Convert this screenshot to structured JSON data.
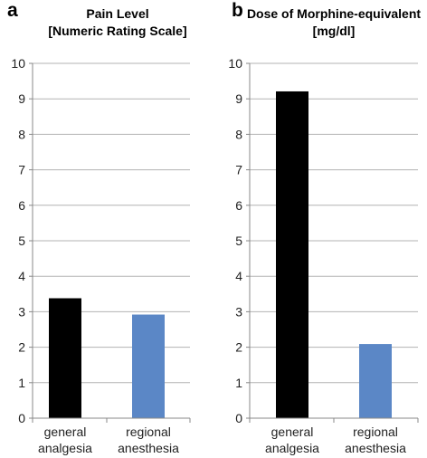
{
  "chart_data": [
    {
      "type": "bar",
      "panel_letter": "a",
      "title_line1": "Pain Level",
      "title_line2": "[Numeric Rating Scale]",
      "categories": [
        [
          "general",
          "analgesia"
        ],
        [
          "regional",
          "anesthesia"
        ]
      ],
      "values": [
        3.38,
        2.92
      ],
      "bar_colors": [
        "#000000",
        "#5b87c6"
      ],
      "ylim": [
        0,
        10
      ],
      "yticks": [
        "0",
        "1",
        "2",
        "3",
        "4",
        "5",
        "6",
        "7",
        "8",
        "9",
        "10"
      ],
      "grid": true
    },
    {
      "type": "bar",
      "panel_letter": "b",
      "title_line1": "Dose of Morphine-equivalent",
      "title_line2": "[mg/dl]",
      "categories": [
        [
          "general",
          "analgesia"
        ],
        [
          "regional",
          "anesthesia"
        ]
      ],
      "values": [
        9.21,
        2.09
      ],
      "bar_colors": [
        "#000000",
        "#5b87c6"
      ],
      "ylim": [
        0,
        10
      ],
      "yticks": [
        "0",
        "1",
        "2",
        "3",
        "4",
        "5",
        "6",
        "7",
        "8",
        "9",
        "10"
      ],
      "grid": true
    }
  ]
}
